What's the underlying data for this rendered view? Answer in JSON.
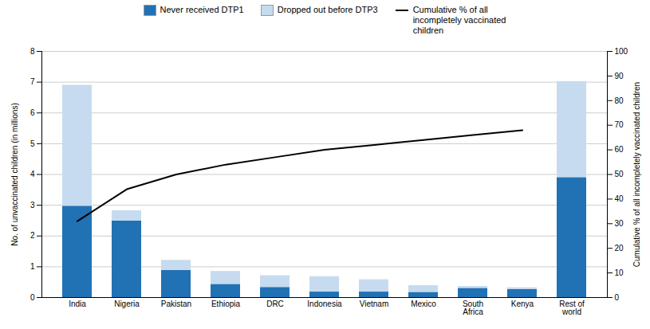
{
  "chart_data": {
    "type": "bar",
    "stacked": true,
    "categories": [
      "India",
      "Nigeria",
      "Pakistan",
      "Ethiopia",
      "DRC",
      "Indonesia",
      "Vietnam",
      "Mexico",
      "South\nAfrica",
      "Kenya",
      "Rest of\nworld"
    ],
    "series": [
      {
        "name": "Never received DTP1",
        "color": "#2171b5",
        "values": [
          2.97,
          2.49,
          0.88,
          0.43,
          0.33,
          0.18,
          0.18,
          0.17,
          0.3,
          0.26,
          3.9
        ]
      },
      {
        "name": "Dropped out before DTP3",
        "color": "#c6dbef",
        "values": [
          3.93,
          0.33,
          0.33,
          0.42,
          0.38,
          0.5,
          0.4,
          0.22,
          0.06,
          0.06,
          3.12
        ]
      },
      {
        "name": "Cumulative % of all\nincompletely vaccinated\nchildren",
        "type": "line",
        "axis": "y2",
        "color": "#000000",
        "values": [
          31,
          44,
          50,
          54,
          57,
          60,
          62,
          64,
          66,
          68,
          null
        ]
      }
    ],
    "ylabel": "No. of unvaccinated children (in millions)",
    "y2label": "Cumulative % of all incompletely vaccinated children",
    "ylim": [
      0,
      8
    ],
    "yticks": [
      0,
      1,
      2,
      3,
      4,
      5,
      6,
      7,
      8
    ],
    "y2lim": [
      0,
      100
    ],
    "y2ticks": [
      0,
      10,
      20,
      30,
      40,
      50,
      60,
      70,
      80,
      90,
      100
    ],
    "grid": true,
    "legend": "upper center"
  }
}
